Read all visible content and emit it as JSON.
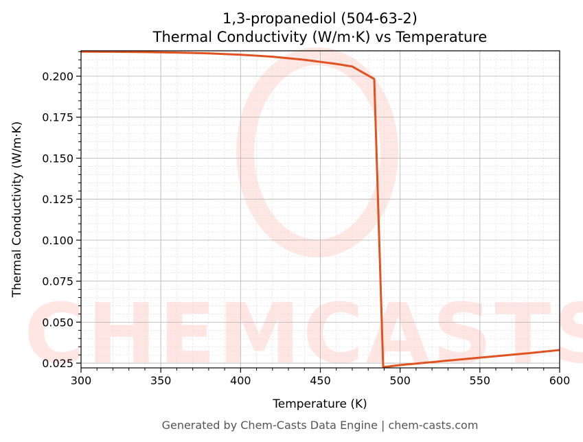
{
  "chart_data": {
    "type": "line",
    "title": "1,3-propanediol (504-63-2)",
    "subtitle": "Thermal Conductivity (W/m·K) vs Temperature",
    "xlabel": "Temperature (K)",
    "ylabel": "Thermal Conductivity (W/m·K)",
    "xlim": [
      300,
      600
    ],
    "ylim": [
      0.0221,
      0.2155
    ],
    "xticks": [
      "300",
      "350",
      "400",
      "450",
      "500",
      "550",
      "600"
    ],
    "yticks": [
      "0.025",
      "0.050",
      "0.075",
      "0.100",
      "0.125",
      "0.150",
      "0.175",
      "0.200"
    ],
    "grid": true,
    "series": [
      {
        "color": "#e0521f",
        "x": [
          300,
          320,
          340,
          360,
          380,
          400,
          420,
          440,
          460,
          470,
          483.8,
          489.4,
          500,
          520,
          540,
          560,
          580,
          600
        ],
        "y": [
          0.215,
          0.2149,
          0.2147,
          0.2144,
          0.2139,
          0.2131,
          0.2119,
          0.21,
          0.2075,
          0.2059,
          0.1983,
          0.0225,
          0.0238,
          0.0256,
          0.0274,
          0.0292,
          0.031,
          0.033
        ]
      }
    ],
    "watermark": "CHEMCASTS",
    "footer": "Generated by Chem-Casts Data Engine | chem-casts.com"
  }
}
